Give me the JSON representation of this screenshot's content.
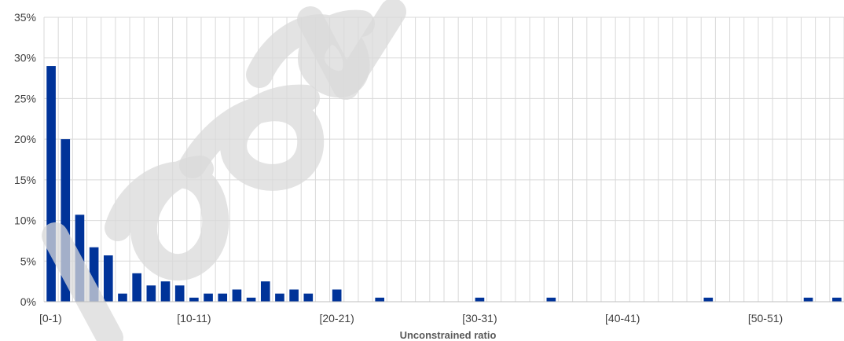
{
  "chart_data": {
    "type": "bar",
    "title": "",
    "xlabel": "Unconstrained ratio",
    "ylabel": "",
    "ylim": [
      0,
      35
    ],
    "y_ticks": [
      "0%",
      "5%",
      "10%",
      "15%",
      "20%",
      "25%",
      "30%",
      "35%"
    ],
    "y_tick_values": [
      0,
      5,
      10,
      15,
      20,
      25,
      30,
      35
    ],
    "x_tick_labels": [
      "[0-1)",
      "[10-11)",
      "[20-21)",
      "[30-31)",
      "[40-41)",
      "[50-51)"
    ],
    "x_tick_bins": [
      0,
      10,
      20,
      30,
      40,
      50
    ],
    "grid": true,
    "bar_color": "#003399",
    "bin_count": 56,
    "values": [
      29,
      20,
      10.7,
      6.7,
      5.7,
      1,
      3.5,
      2,
      2.5,
      2,
      0.5,
      1,
      1,
      1.5,
      0.5,
      2.5,
      1,
      1.5,
      1,
      0,
      1.5,
      0,
      0,
      0.5,
      0,
      0,
      0,
      0,
      0,
      0,
      0.5,
      0,
      0,
      0,
      0,
      0.5,
      0,
      0,
      0,
      0,
      0,
      0,
      0,
      0,
      0,
      0,
      0.5,
      0,
      0,
      0,
      0,
      0,
      0,
      0.5,
      0,
      0.5
    ]
  }
}
